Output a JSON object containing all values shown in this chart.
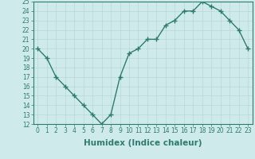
{
  "xlabel": "Humidex (Indice chaleur)",
  "x": [
    0,
    1,
    2,
    3,
    4,
    5,
    6,
    7,
    8,
    9,
    10,
    11,
    12,
    13,
    14,
    15,
    16,
    17,
    18,
    19,
    20,
    21,
    22,
    23
  ],
  "y": [
    20,
    19,
    17,
    16,
    15,
    14,
    13,
    12,
    13,
    17,
    19.5,
    20,
    21,
    21,
    22.5,
    23,
    24,
    24,
    25,
    24.5,
    24,
    23,
    22,
    20
  ],
  "line_color": "#2d7d6e",
  "marker": "+",
  "marker_size": 4,
  "bg_color": "#ceeaea",
  "grid_color": "#b8d8d8",
  "ylim": [
    12,
    25
  ],
  "xlim": [
    -0.5,
    23.5
  ],
  "yticks": [
    12,
    13,
    14,
    15,
    16,
    17,
    18,
    19,
    20,
    21,
    22,
    23,
    24,
    25
  ],
  "xticks": [
    0,
    1,
    2,
    3,
    4,
    5,
    6,
    7,
    8,
    9,
    10,
    11,
    12,
    13,
    14,
    15,
    16,
    17,
    18,
    19,
    20,
    21,
    22,
    23
  ],
  "xtick_labels": [
    "0",
    "1",
    "2",
    "3",
    "4",
    "5",
    "6",
    "7",
    "8",
    "9",
    "10",
    "11",
    "12",
    "13",
    "14",
    "15",
    "16",
    "17",
    "18",
    "19",
    "20",
    "21",
    "22",
    "23"
  ],
  "tick_fontsize": 5.5,
  "xlabel_fontsize": 7.5,
  "line_width": 1.0
}
